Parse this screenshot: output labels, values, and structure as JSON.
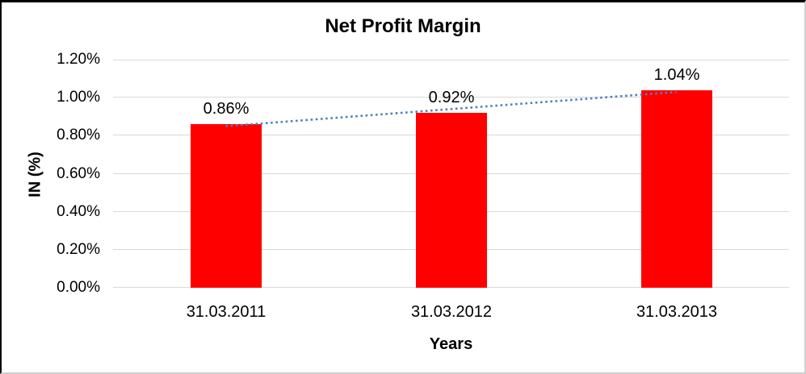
{
  "chart_data": {
    "type": "bar",
    "title": "Net Profit Margin",
    "categories": [
      "31.03.2011",
      "31.03.2012",
      "31.03.2013"
    ],
    "values": [
      0.86,
      0.92,
      1.04
    ],
    "value_labels": [
      "0.86%",
      "0.92%",
      "1.04%"
    ],
    "xlabel": "Years",
    "ylabel": "IN (%)",
    "ylim": [
      0,
      1.2
    ],
    "ytick_labels": [
      "0.00%",
      "0.20%",
      "0.40%",
      "0.60%",
      "0.80%",
      "1.00%",
      "1.20%"
    ],
    "grid": true,
    "legend_position": "none",
    "bar_color": "#ff0000",
    "gridline_color": "#d9d9d9",
    "trendline": {
      "kind": "linear",
      "style": "dotted",
      "color": "#4f81bd"
    }
  }
}
